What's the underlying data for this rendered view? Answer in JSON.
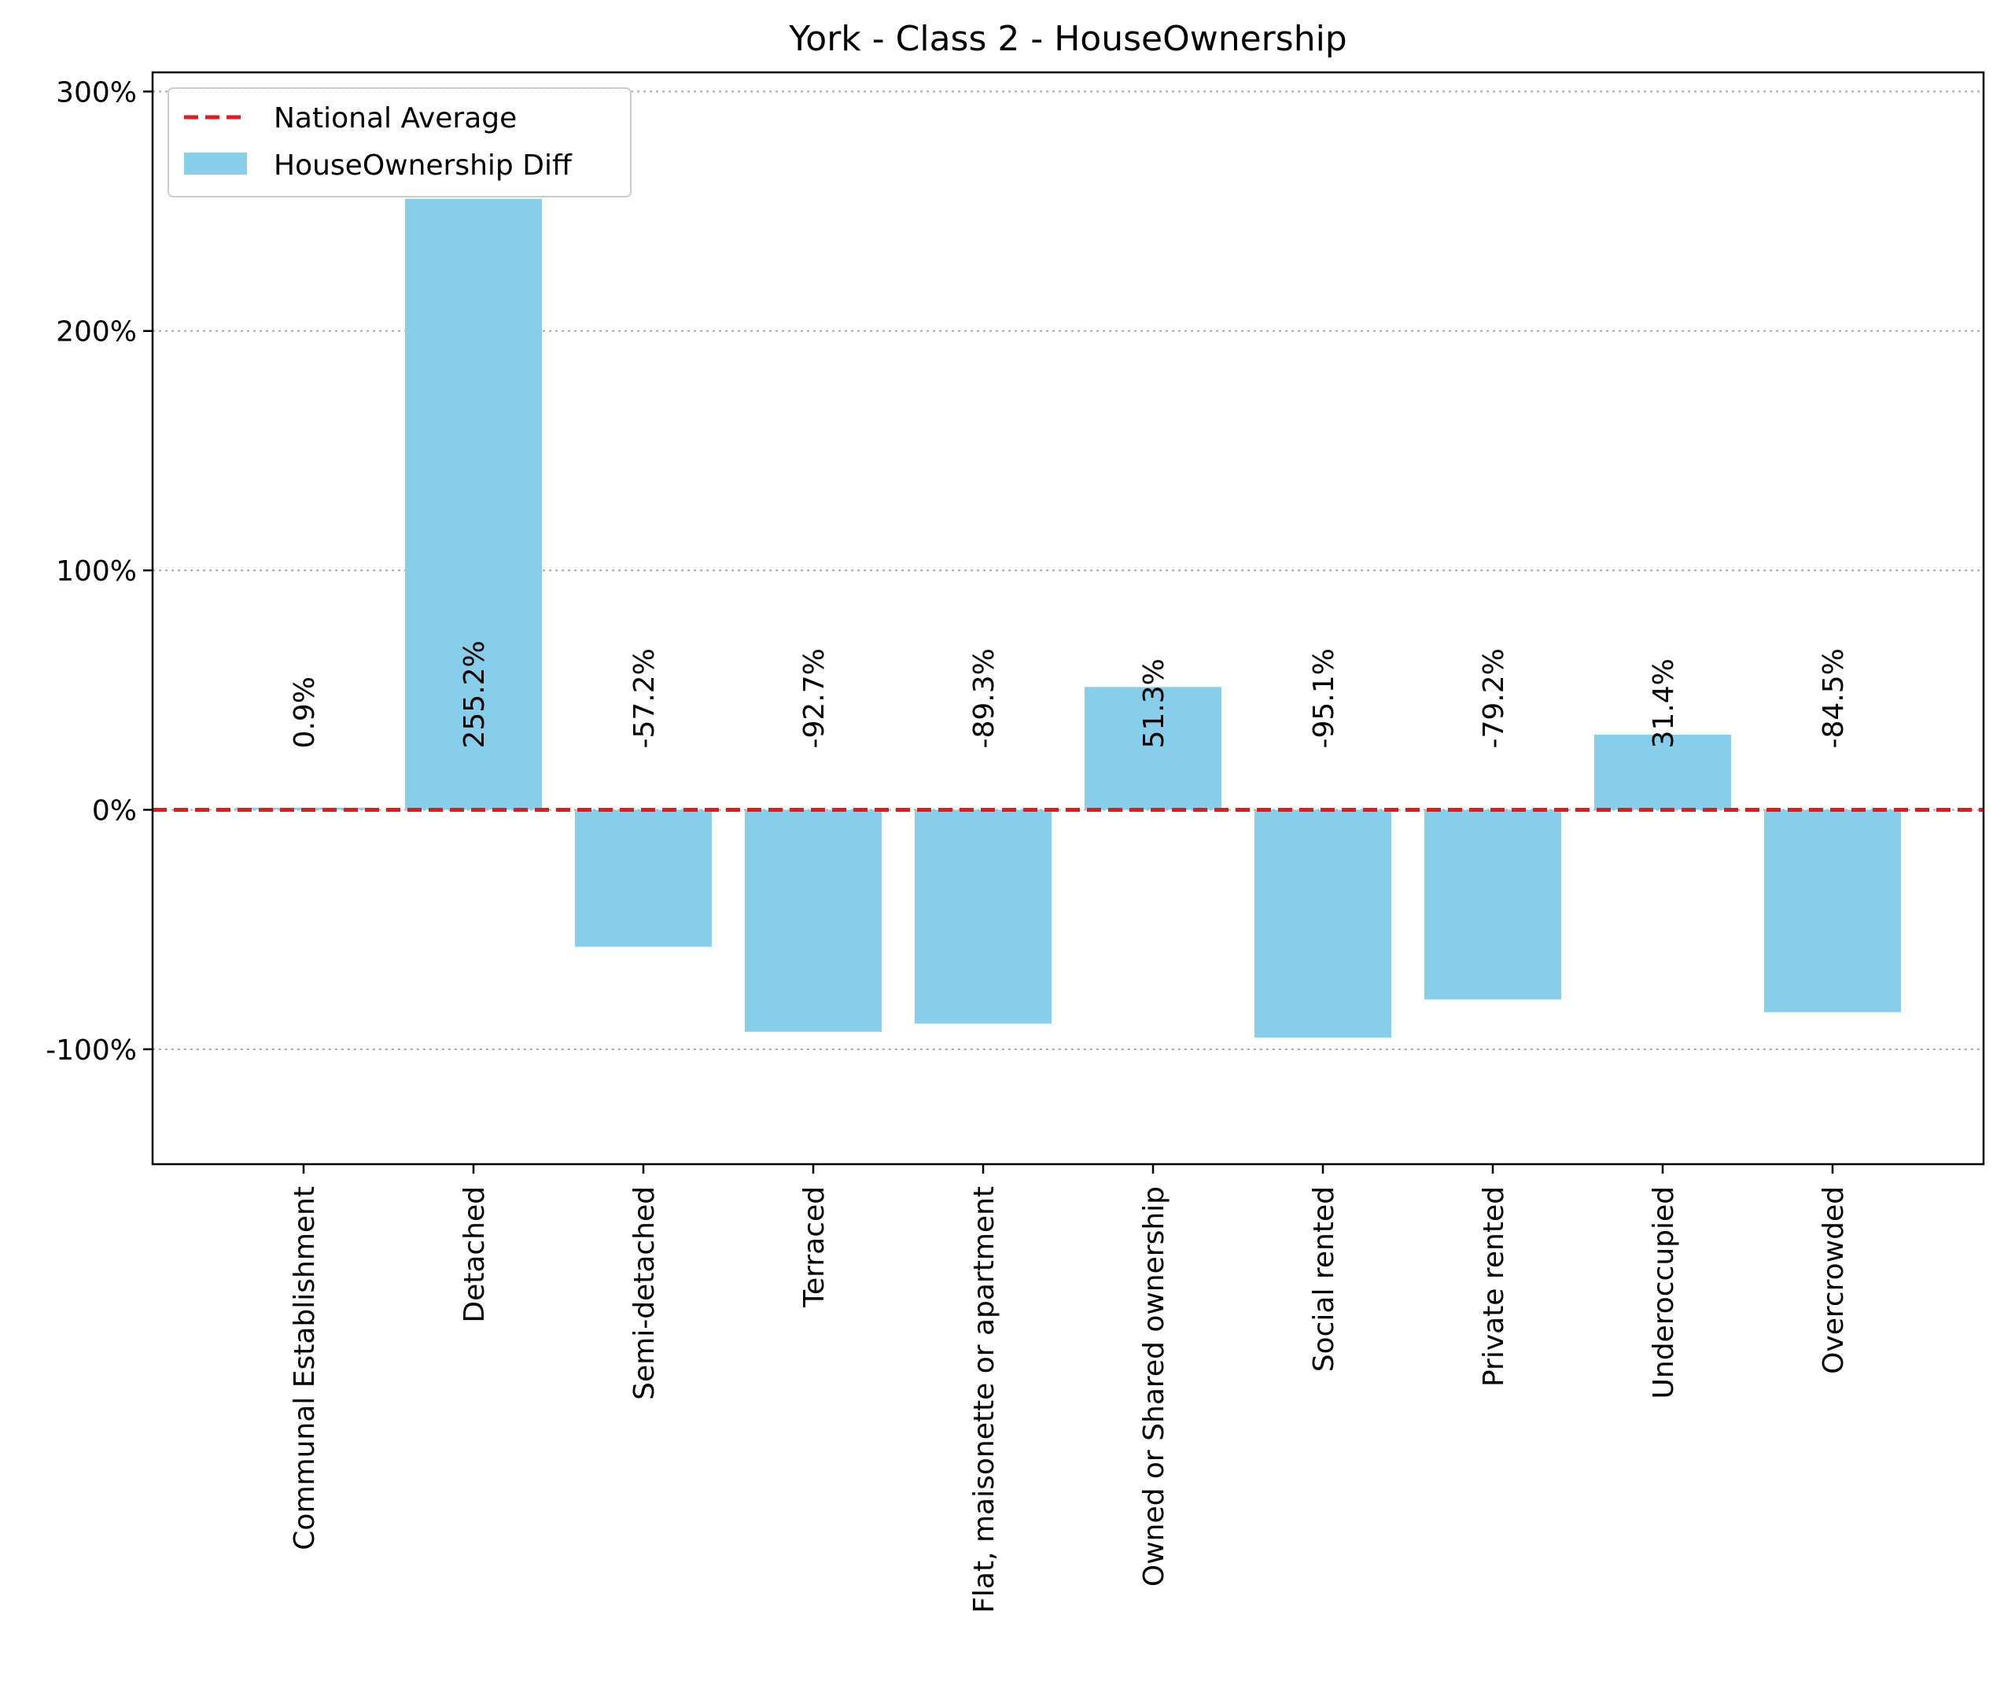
{
  "chart_data": {
    "type": "bar",
    "title": "York - Class 2 - HouseOwnership",
    "xlabel": "",
    "ylabel": "",
    "categories": [
      "Communal Establishment",
      "Detached",
      "Semi-detached",
      "Terraced",
      "Flat, maisonette or apartment",
      "Owned or Shared ownership",
      "Social rented",
      "Private rented",
      "Underoccupied",
      "Overcrowded"
    ],
    "series": [
      {
        "name": "HouseOwnership Diff",
        "values": [
          0.9,
          255.2,
          -57.2,
          -92.7,
          -89.3,
          51.3,
          -95.1,
          -79.2,
          31.4,
          -84.5
        ],
        "labels": [
          "0.9%",
          "255.2%",
          "-57.2%",
          "-92.7%",
          "-89.3%",
          "51.3%",
          "-95.1%",
          "-79.2%",
          "31.4%",
          "-84.5%"
        ],
        "color": "#87ceeb"
      }
    ],
    "reference_line": {
      "name": "National Average",
      "value": 0,
      "color": "#e41a1c",
      "style": "dashed"
    },
    "ylim": [
      -148,
      308
    ],
    "yticks": [
      -100,
      0,
      100,
      200,
      300
    ],
    "ytick_labels": [
      "-100%",
      "0%",
      "100%",
      "200%",
      "300%"
    ],
    "grid": "y-dotted",
    "legend_position": "top-left"
  }
}
